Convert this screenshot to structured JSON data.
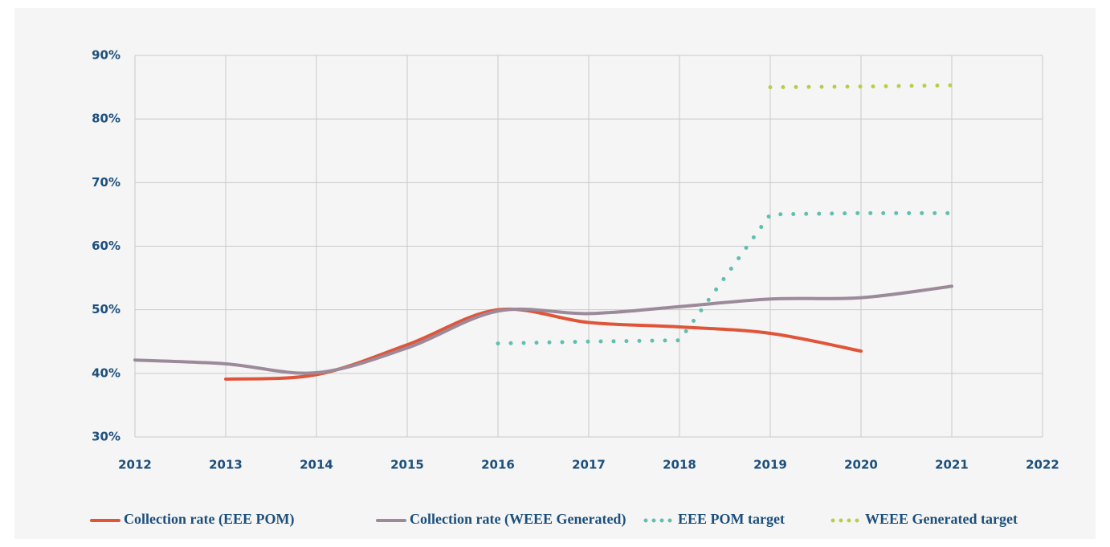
{
  "chart_data": {
    "type": "line",
    "x": [
      2012,
      2013,
      2014,
      2015,
      2016,
      2017,
      2018,
      2019,
      2020,
      2021
    ],
    "series": [
      {
        "name": "Collection rate (EEE POM)",
        "color": "#e0553a",
        "style": "solid",
        "values": [
          null,
          39.1,
          39.8,
          44.5,
          50,
          48,
          47.3,
          46.3,
          43.5,
          null
        ]
      },
      {
        "name": "Collection rate (WEEE Generated)",
        "color": "#9c8a9a",
        "style": "solid",
        "values": [
          42.1,
          41.5,
          40.1,
          44,
          49.8,
          49.4,
          50.5,
          51.7,
          51.9,
          53.7
        ]
      },
      {
        "name": "EEE POM target",
        "color": "#5fbfb0",
        "style": "dotted",
        "values": [
          null,
          null,
          null,
          null,
          44.7,
          45,
          45.2,
          65,
          65.2,
          65.2
        ]
      },
      {
        "name": "WEEE Generated target",
        "color": "#bccc4a",
        "style": "dotted",
        "values": [
          null,
          null,
          null,
          null,
          null,
          null,
          null,
          85,
          85.1,
          85.3
        ]
      }
    ],
    "xlim": [
      2012,
      2022
    ],
    "xticks": [
      2012,
      2013,
      2014,
      2015,
      2016,
      2017,
      2018,
      2019,
      2020,
      2021,
      2022
    ],
    "ylim": [
      30,
      90
    ],
    "yticks": [
      {
        "value": 30,
        "label": "30%"
      },
      {
        "value": 40,
        "label": "40%"
      },
      {
        "value": 50,
        "label": "50%"
      },
      {
        "value": 60,
        "label": "60%"
      },
      {
        "value": 70,
        "label": "70%"
      },
      {
        "value": 80,
        "label": "80%"
      },
      {
        "value": 90,
        "label": "90%"
      }
    ],
    "grid": true,
    "legend": "bottom"
  }
}
